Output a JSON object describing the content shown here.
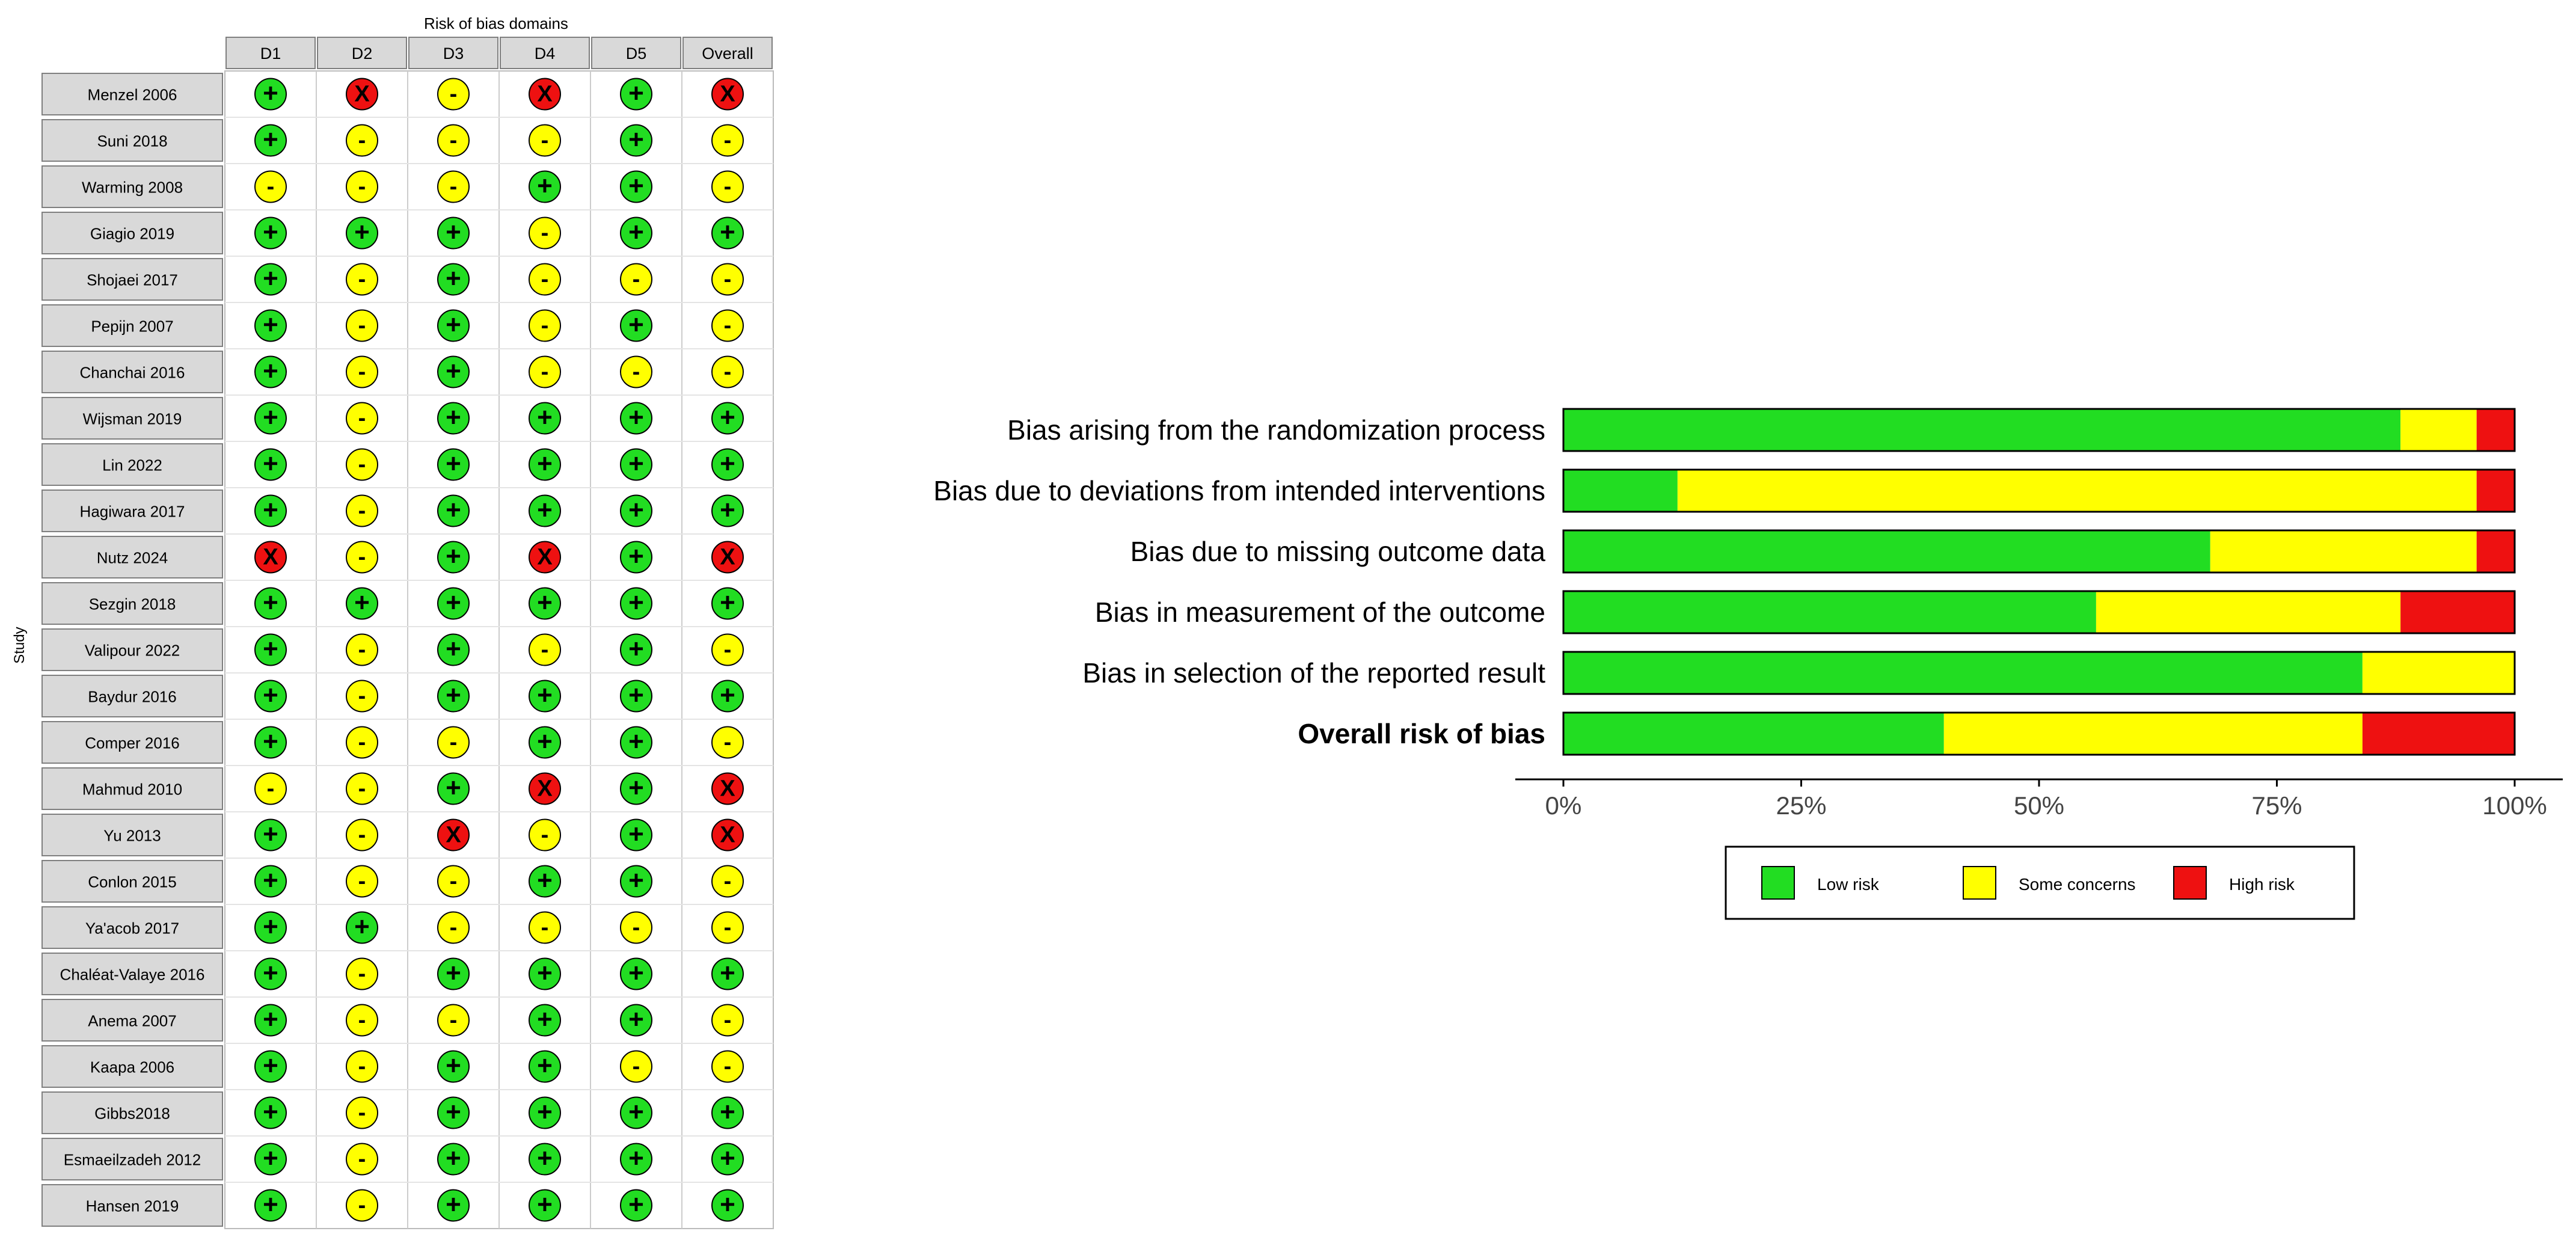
{
  "chart_data": [
    {
      "type": "table",
      "title": "Risk of bias domains",
      "ylabel": "Study",
      "columns": [
        "D1",
        "D2",
        "D3",
        "D4",
        "D5",
        "Overall"
      ],
      "symbols": {
        "low": "+",
        "some": "-",
        "high": "X"
      },
      "colors": {
        "low": "#22dd22",
        "some": "#ffff00",
        "high": "#ee1111"
      },
      "rows": [
        {
          "study": "Menzel 2006",
          "judgements": [
            "low",
            "high",
            "some",
            "high",
            "low",
            "high"
          ]
        },
        {
          "study": "Suni 2018",
          "judgements": [
            "low",
            "some",
            "some",
            "some",
            "low",
            "some"
          ]
        },
        {
          "study": "Warming 2008",
          "judgements": [
            "some",
            "some",
            "some",
            "low",
            "low",
            "some"
          ]
        },
        {
          "study": "Giagio 2019",
          "judgements": [
            "low",
            "low",
            "low",
            "some",
            "low",
            "low"
          ]
        },
        {
          "study": "Shojaei 2017",
          "judgements": [
            "low",
            "some",
            "low",
            "some",
            "some",
            "some"
          ]
        },
        {
          "study": "Pepijn 2007",
          "judgements": [
            "low",
            "some",
            "low",
            "some",
            "low",
            "some"
          ]
        },
        {
          "study": "Chanchai 2016",
          "judgements": [
            "low",
            "some",
            "low",
            "some",
            "some",
            "some"
          ]
        },
        {
          "study": "Wijsman 2019",
          "judgements": [
            "low",
            "some",
            "low",
            "low",
            "low",
            "low"
          ]
        },
        {
          "study": "Lin 2022",
          "judgements": [
            "low",
            "some",
            "low",
            "low",
            "low",
            "low"
          ]
        },
        {
          "study": "Hagiwara 2017",
          "judgements": [
            "low",
            "some",
            "low",
            "low",
            "low",
            "low"
          ]
        },
        {
          "study": "Nutz 2024",
          "judgements": [
            "high",
            "some",
            "low",
            "high",
            "low",
            "high"
          ]
        },
        {
          "study": "Sezgin 2018",
          "judgements": [
            "low",
            "low",
            "low",
            "low",
            "low",
            "low"
          ]
        },
        {
          "study": "Valipour 2022",
          "judgements": [
            "low",
            "some",
            "low",
            "some",
            "low",
            "some"
          ]
        },
        {
          "study": "Baydur 2016",
          "judgements": [
            "low",
            "some",
            "low",
            "low",
            "low",
            "low"
          ]
        },
        {
          "study": "Comper 2016",
          "judgements": [
            "low",
            "some",
            "some",
            "low",
            "low",
            "some"
          ]
        },
        {
          "study": "Mahmud 2010",
          "judgements": [
            "some",
            "some",
            "low",
            "high",
            "low",
            "high"
          ]
        },
        {
          "study": "Yu 2013",
          "judgements": [
            "low",
            "some",
            "high",
            "some",
            "low",
            "high"
          ]
        },
        {
          "study": "Conlon 2015",
          "judgements": [
            "low",
            "some",
            "some",
            "low",
            "low",
            "some"
          ]
        },
        {
          "study": "Ya'acob 2017",
          "judgements": [
            "low",
            "low",
            "some",
            "some",
            "some",
            "some"
          ]
        },
        {
          "study": "Chaléat-Valaye 2016",
          "judgements": [
            "low",
            "some",
            "low",
            "low",
            "low",
            "low"
          ]
        },
        {
          "study": "Anema 2007",
          "judgements": [
            "low",
            "some",
            "some",
            "low",
            "low",
            "some"
          ]
        },
        {
          "study": "Kaapa 2006",
          "judgements": [
            "low",
            "some",
            "low",
            "low",
            "some",
            "some"
          ]
        },
        {
          "study": "Gibbs2018",
          "judgements": [
            "low",
            "some",
            "low",
            "low",
            "low",
            "low"
          ]
        },
        {
          "study": "Esmaeilzadeh 2012",
          "judgements": [
            "low",
            "some",
            "low",
            "low",
            "low",
            "low"
          ]
        },
        {
          "study": "Hansen 2019",
          "judgements": [
            "low",
            "some",
            "low",
            "low",
            "low",
            "low"
          ]
        }
      ]
    },
    {
      "type": "bar",
      "orientation": "horizontal",
      "stacked": true,
      "categories": [
        "Bias arising from the randomization process",
        "Bias due to deviations from intended interventions",
        "Bias due to missing outcome data",
        "Bias in measurement of the outcome",
        "Bias in selection of the reported result",
        "Overall risk of bias"
      ],
      "bold_categories": [
        "Overall risk of bias"
      ],
      "series": [
        {
          "name": "Low risk",
          "color": "#22dd22",
          "values": [
            88,
            12,
            68,
            56,
            84,
            40
          ]
        },
        {
          "name": "Some concerns",
          "color": "#ffff00",
          "values": [
            8,
            84,
            28,
            32,
            16,
            44
          ]
        },
        {
          "name": "High risk",
          "color": "#ee1111",
          "values": [
            4,
            4,
            4,
            12,
            0,
            16
          ]
        }
      ],
      "xlim": [
        0,
        100
      ],
      "xticks": [
        "0%",
        "25%",
        "50%",
        "75%",
        "100%"
      ],
      "legend": "bottom"
    }
  ]
}
